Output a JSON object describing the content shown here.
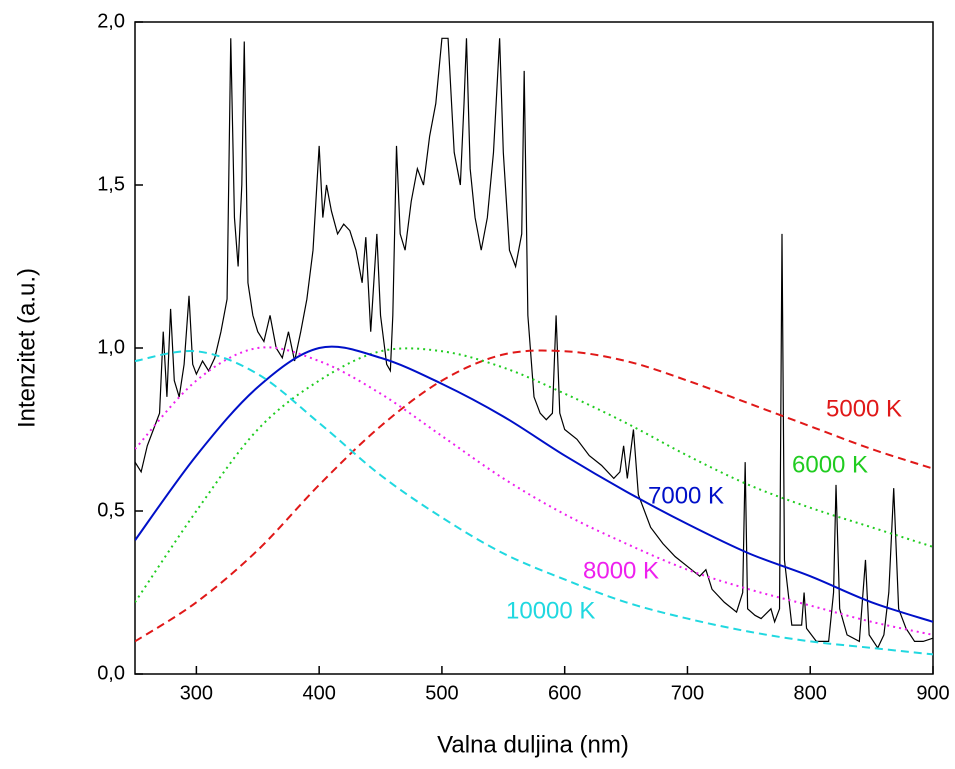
{
  "chart_data": {
    "type": "line",
    "xlabel": "Valna duljina (nm)",
    "ylabel": "Intenzitet (a.u.)",
    "xlim": [
      250,
      900
    ],
    "ylim": [
      0,
      2
    ],
    "xticks": [
      300,
      400,
      500,
      600,
      700,
      800,
      900
    ],
    "yticks": [
      {
        "value": 0,
        "label": "0,0"
      },
      {
        "value": 0.5,
        "label": "0,5"
      },
      {
        "value": 1,
        "label": "1,0"
      },
      {
        "value": 1.5,
        "label": "1,5"
      },
      {
        "value": 2,
        "label": "2,0"
      }
    ],
    "series": [
      {
        "color": "#000000",
        "style": "solid",
        "x": [
          250,
          255,
          260,
          265,
          270,
          273,
          276,
          279,
          282,
          286,
          290,
          294,
          297,
          300,
          305,
          310,
          315,
          320,
          325,
          328,
          331,
          334,
          337,
          339,
          342,
          346,
          350,
          355,
          360,
          365,
          370,
          375,
          380,
          385,
          390,
          395,
          400,
          403,
          406,
          410,
          415,
          420,
          425,
          430,
          435,
          438,
          442,
          447,
          450,
          455,
          458,
          460,
          463,
          466,
          470,
          475,
          480,
          485,
          490,
          495,
          500,
          505,
          510,
          515,
          518,
          520,
          523,
          527,
          532,
          537,
          542,
          547,
          550,
          555,
          560,
          565,
          567,
          570,
          575,
          580,
          585,
          590,
          593,
          596,
          600,
          610,
          620,
          630,
          640,
          645,
          648,
          651,
          656,
          660,
          670,
          680,
          690,
          700,
          710,
          715,
          720,
          730,
          740,
          745,
          747,
          749,
          755,
          760,
          768,
          771,
          775,
          777,
          779,
          785,
          793,
          795,
          797,
          805,
          815,
          819,
          821,
          824,
          830,
          840,
          845,
          848,
          855,
          860,
          864,
          868,
          872,
          878,
          885,
          892,
          900
        ],
        "values": [
          0.65,
          0.62,
          0.7,
          0.75,
          0.8,
          1.05,
          0.85,
          1.12,
          0.9,
          0.85,
          0.95,
          1.16,
          0.95,
          0.92,
          0.96,
          0.93,
          0.97,
          1.05,
          1.15,
          1.95,
          1.4,
          1.25,
          1.5,
          1.94,
          1.2,
          1.1,
          1.05,
          1.02,
          1.1,
          1.0,
          0.97,
          1.05,
          0.96,
          1.05,
          1.15,
          1.3,
          1.62,
          1.4,
          1.5,
          1.42,
          1.35,
          1.38,
          1.36,
          1.3,
          1.2,
          1.34,
          1.05,
          1.35,
          1.1,
          0.95,
          0.93,
          1.1,
          1.62,
          1.35,
          1.3,
          1.45,
          1.55,
          1.5,
          1.65,
          1.75,
          1.95,
          1.95,
          1.6,
          1.5,
          1.75,
          1.95,
          1.55,
          1.4,
          1.3,
          1.4,
          1.6,
          1.95,
          1.6,
          1.3,
          1.25,
          1.35,
          1.85,
          1.1,
          0.85,
          0.8,
          0.78,
          0.8,
          1.1,
          0.8,
          0.75,
          0.72,
          0.67,
          0.64,
          0.6,
          0.62,
          0.7,
          0.6,
          0.75,
          0.55,
          0.45,
          0.4,
          0.36,
          0.33,
          0.3,
          0.32,
          0.26,
          0.22,
          0.19,
          0.25,
          0.65,
          0.2,
          0.18,
          0.17,
          0.2,
          0.16,
          0.2,
          1.35,
          0.35,
          0.15,
          0.15,
          0.25,
          0.14,
          0.1,
          0.1,
          0.25,
          0.58,
          0.2,
          0.12,
          0.1,
          0.35,
          0.12,
          0.08,
          0.12,
          0.25,
          0.57,
          0.2,
          0.14,
          0.1,
          0.1,
          0.11
        ]
      },
      {
        "name": "5000 K",
        "color": "#e01818",
        "style": "dashed",
        "x": [
          250,
          300,
          350,
          400,
          450,
          500,
          550,
          600,
          650,
          700,
          750,
          800,
          850,
          900
        ],
        "values": [
          0.1,
          0.22,
          0.38,
          0.58,
          0.76,
          0.9,
          0.98,
          0.99,
          0.96,
          0.9,
          0.83,
          0.76,
          0.69,
          0.63
        ]
      },
      {
        "name": "6000 K",
        "color": "#20cc20",
        "style": "dotted",
        "x": [
          250,
          300,
          350,
          400,
          450,
          500,
          550,
          600,
          650,
          700,
          750,
          800,
          850,
          900
        ],
        "values": [
          0.22,
          0.5,
          0.75,
          0.9,
          0.99,
          0.99,
          0.94,
          0.86,
          0.77,
          0.67,
          0.58,
          0.51,
          0.45,
          0.39
        ]
      },
      {
        "name": "7000 K",
        "color": "#0010c8",
        "style": "solid",
        "x": [
          250,
          300,
          350,
          400,
          450,
          500,
          550,
          600,
          650,
          700,
          750,
          800,
          850,
          900
        ],
        "values": [
          0.41,
          0.67,
          0.88,
          1.0,
          0.97,
          0.89,
          0.79,
          0.67,
          0.56,
          0.46,
          0.37,
          0.3,
          0.22,
          0.16
        ]
      },
      {
        "name": "8000 K",
        "color": "#ee20ee",
        "style": "dotted",
        "x": [
          250,
          300,
          350,
          400,
          450,
          500,
          550,
          600,
          650,
          700,
          750,
          800,
          850,
          900
        ],
        "values": [
          0.69,
          0.9,
          1.0,
          0.96,
          0.86,
          0.73,
          0.6,
          0.49,
          0.4,
          0.32,
          0.26,
          0.21,
          0.16,
          0.12
        ]
      },
      {
        "name": "10000 K",
        "color": "#20d8e0",
        "style": "dashed",
        "x": [
          250,
          300,
          350,
          400,
          450,
          500,
          550,
          600,
          650,
          700,
          750,
          800,
          850,
          900
        ],
        "values": [
          0.96,
          0.99,
          0.92,
          0.77,
          0.61,
          0.48,
          0.37,
          0.29,
          0.22,
          0.17,
          0.13,
          0.1,
          0.08,
          0.06
        ]
      }
    ]
  }
}
